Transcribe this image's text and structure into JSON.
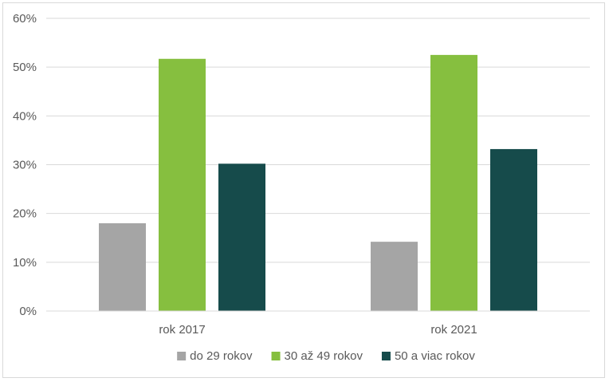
{
  "chart_data": {
    "type": "bar",
    "categories": [
      "rok 2017",
      "rok 2021"
    ],
    "series": [
      {
        "name": "do 29 rokov",
        "values": [
          18,
          14.2
        ],
        "color": "#a5a5a5"
      },
      {
        "name": "30 až 49 rokov",
        "values": [
          51.7,
          52.5
        ],
        "color": "#86bf3f"
      },
      {
        "name": "50 a viac rokov",
        "values": [
          30.2,
          33.2
        ],
        "color": "#164b4b"
      }
    ],
    "ylim": [
      0,
      60
    ],
    "yticks": [
      "0%",
      "10%",
      "20%",
      "30%",
      "40%",
      "50%",
      "60%"
    ],
    "ytick_values": [
      0,
      10,
      20,
      30,
      40,
      50,
      60
    ],
    "grid": true,
    "legend_position": "bottom"
  }
}
